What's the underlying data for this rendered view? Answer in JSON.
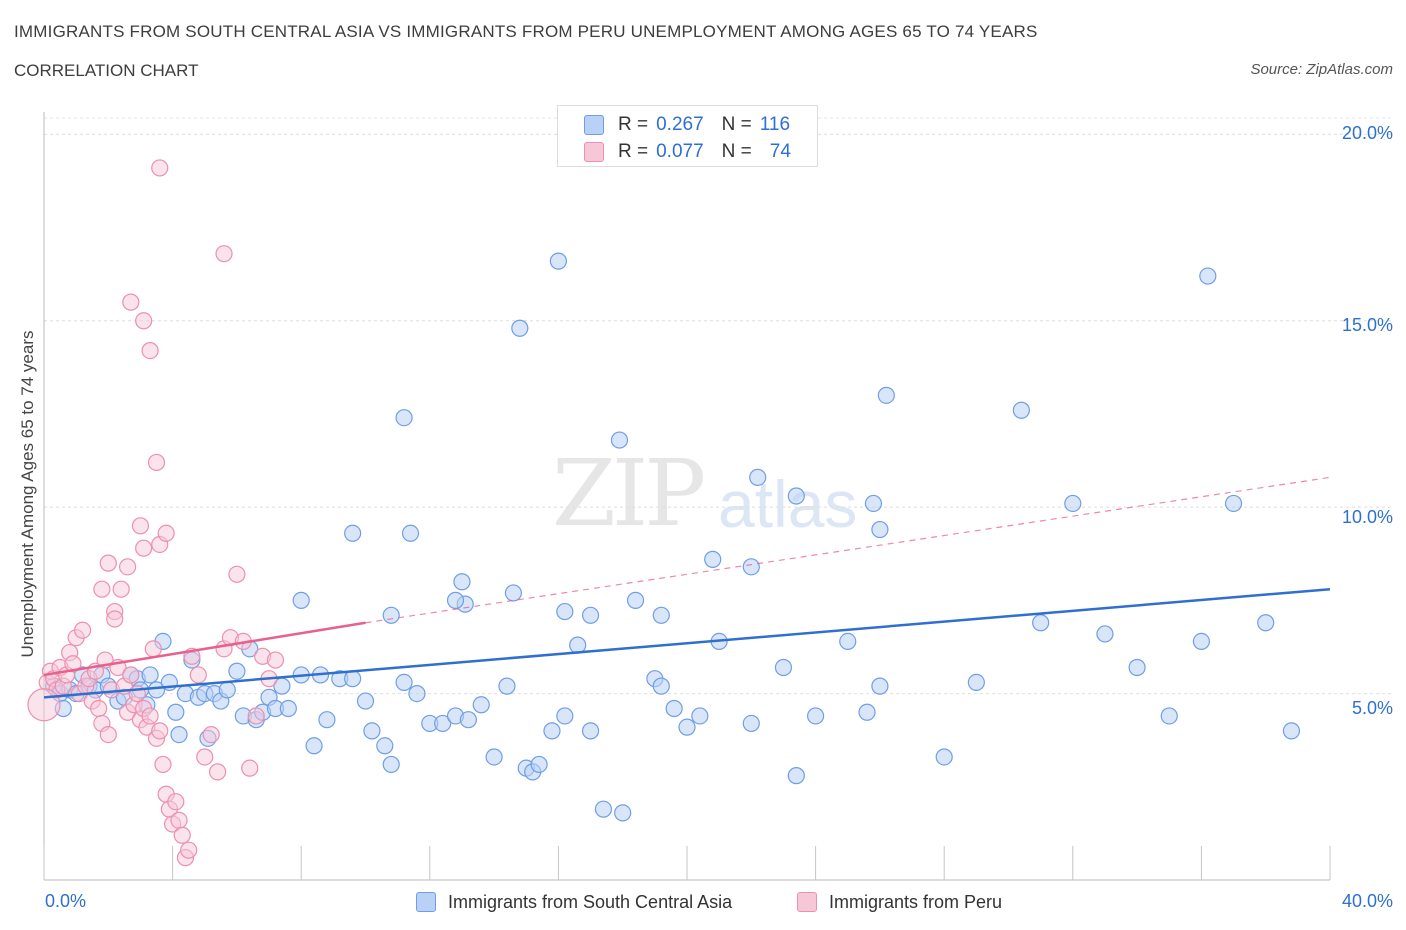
{
  "header": {
    "title": "IMMIGRANTS FROM SOUTH CENTRAL ASIA VS IMMIGRANTS FROM PERU UNEMPLOYMENT AMONG AGES 65 TO 74 YEARS",
    "subtitle": "CORRELATION CHART",
    "source": "Source: ZipAtlas.com"
  },
  "watermark": {
    "zip": "ZIP",
    "atlas": "atlas"
  },
  "legend": {
    "rows": [
      {
        "r_label": "R =",
        "r_value": "0.267",
        "n_label": "N =",
        "n_value": "116"
      },
      {
        "r_label": "R =",
        "r_value": "0.077",
        "n_label": "N =",
        "n_value": "74"
      }
    ]
  },
  "colors": {
    "blue": "#6f9ee6",
    "blue_fill": "#b9d1f6",
    "blue_line": "#2f6fd0",
    "pink": "#ec8fb0",
    "pink_fill": "#f7c7d8",
    "pink_line": "#e8608c",
    "axis_text": "#2f6fd0"
  },
  "chart_data": {
    "type": "scatter",
    "title": "IMMIGRANTS FROM SOUTH CENTRAL ASIA VS IMMIGRANTS FROM PERU UNEMPLOYMENT AMONG AGES 65 TO 74 YEARS",
    "xlabel": "",
    "ylabel": "Unemployment Among Ages 65 to 74 years",
    "xlim": [
      0,
      40
    ],
    "ylim": [
      0,
      20.6
    ],
    "x_tick_labels": [
      "0.0%",
      "40.0%"
    ],
    "y_ticks": [
      5,
      10,
      15,
      20
    ],
    "y_tick_labels": [
      "5.0%",
      "10.0%",
      "15.0%",
      "20.0%"
    ],
    "grid": true,
    "series": [
      {
        "name": "Immigrants from South Central Asia",
        "color": "#6f9ee6",
        "trend": {
          "x": [
            0,
            40
          ],
          "y": [
            4.9,
            7.8
          ],
          "dashed_to": null
        },
        "points": [
          [
            0.3,
            5.2
          ],
          [
            0.5,
            5.0
          ],
          [
            0.6,
            4.6
          ],
          [
            0.8,
            5.1
          ],
          [
            1.0,
            5.0
          ],
          [
            1.2,
            5.5
          ],
          [
            1.4,
            5.2
          ],
          [
            1.6,
            5.1
          ],
          [
            1.8,
            5.5
          ],
          [
            2.0,
            5.2
          ],
          [
            2.3,
            4.8
          ],
          [
            2.5,
            4.9
          ],
          [
            2.7,
            5.5
          ],
          [
            2.9,
            5.4
          ],
          [
            3.0,
            5.1
          ],
          [
            3.2,
            4.7
          ],
          [
            3.3,
            5.5
          ],
          [
            3.5,
            5.1
          ],
          [
            3.7,
            6.4
          ],
          [
            3.9,
            5.3
          ],
          [
            4.1,
            4.5
          ],
          [
            4.2,
            3.9
          ],
          [
            4.4,
            5.0
          ],
          [
            4.6,
            5.9
          ],
          [
            4.8,
            4.9
          ],
          [
            5.0,
            5.0
          ],
          [
            5.1,
            3.8
          ],
          [
            5.3,
            5.0
          ],
          [
            5.5,
            4.8
          ],
          [
            5.7,
            5.1
          ],
          [
            6.0,
            5.6
          ],
          [
            6.2,
            4.4
          ],
          [
            6.4,
            6.2
          ],
          [
            6.6,
            4.3
          ],
          [
            6.8,
            4.5
          ],
          [
            7.0,
            4.9
          ],
          [
            7.2,
            4.6
          ],
          [
            7.4,
            5.2
          ],
          [
            7.6,
            4.6
          ],
          [
            8.0,
            5.5
          ],
          [
            8.4,
            3.6
          ],
          [
            8.6,
            5.5
          ],
          [
            8.8,
            4.3
          ],
          [
            9.2,
            5.4
          ],
          [
            9.6,
            5.4
          ],
          [
            10.0,
            4.8
          ],
          [
            10.2,
            4.0
          ],
          [
            10.6,
            3.6
          ],
          [
            10.8,
            3.1
          ],
          [
            11.2,
            5.3
          ],
          [
            11.6,
            5.0
          ],
          [
            12.0,
            4.2
          ],
          [
            12.4,
            4.2
          ],
          [
            12.8,
            4.4
          ],
          [
            13.2,
            4.3
          ],
          [
            13.6,
            4.7
          ],
          [
            14.0,
            3.3
          ],
          [
            14.4,
            5.2
          ],
          [
            15.0,
            3.0
          ],
          [
            15.2,
            2.9
          ],
          [
            15.4,
            3.1
          ],
          [
            15.8,
            4.0
          ],
          [
            16.2,
            4.4
          ],
          [
            16.6,
            6.3
          ],
          [
            17.0,
            4.0
          ],
          [
            17.4,
            1.9
          ],
          [
            18.0,
            1.8
          ],
          [
            18.4,
            7.5
          ],
          [
            19.0,
            5.4
          ],
          [
            19.2,
            5.2
          ],
          [
            19.6,
            4.6
          ],
          [
            20.0,
            4.1
          ],
          [
            20.4,
            4.4
          ],
          [
            21.0,
            6.4
          ],
          [
            22.0,
            4.2
          ],
          [
            23.0,
            5.7
          ],
          [
            23.4,
            2.8
          ],
          [
            24.0,
            4.4
          ],
          [
            25.0,
            6.4
          ],
          [
            25.6,
            4.5
          ],
          [
            25.8,
            10.1
          ],
          [
            26.0,
            5.2
          ],
          [
            26.2,
            13.0
          ],
          [
            28.0,
            3.3
          ],
          [
            29.0,
            5.3
          ],
          [
            30.4,
            12.6
          ],
          [
            31.0,
            6.9
          ],
          [
            32.0,
            10.1
          ],
          [
            33.0,
            6.6
          ],
          [
            34.0,
            5.7
          ],
          [
            35.0,
            4.4
          ],
          [
            36.0,
            6.4
          ],
          [
            36.2,
            16.2
          ],
          [
            37.0,
            10.1
          ],
          [
            38.0,
            6.9
          ],
          [
            38.8,
            4.0
          ],
          [
            9.6,
            9.3
          ],
          [
            11.4,
            9.3
          ],
          [
            11.2,
            12.4
          ],
          [
            14.8,
            14.8
          ],
          [
            16.0,
            16.6
          ],
          [
            17.9,
            11.8
          ],
          [
            20.8,
            8.6
          ],
          [
            22.2,
            10.8
          ],
          [
            23.4,
            10.3
          ],
          [
            22.0,
            8.4
          ],
          [
            13.1,
            7.4
          ],
          [
            12.8,
            7.5
          ],
          [
            8.0,
            7.5
          ],
          [
            10.8,
            7.1
          ],
          [
            13.0,
            8.0
          ],
          [
            14.6,
            7.7
          ],
          [
            16.2,
            7.2
          ],
          [
            17.0,
            7.1
          ],
          [
            19.2,
            7.1
          ],
          [
            26.0,
            9.4
          ]
        ]
      },
      {
        "name": "Immigrants from Peru",
        "color": "#ec8fb0",
        "trend": {
          "x": [
            0,
            10
          ],
          "y": [
            5.5,
            6.9
          ],
          "dashed_to": [
            40,
            10.8
          ]
        },
        "points": [
          [
            0.1,
            5.3
          ],
          [
            0.2,
            5.6
          ],
          [
            0.3,
            5.4
          ],
          [
            0.4,
            5.1
          ],
          [
            0.5,
            5.7
          ],
          [
            0.6,
            5.2
          ],
          [
            0.7,
            5.5
          ],
          [
            0.8,
            6.1
          ],
          [
            0.9,
            5.8
          ],
          [
            1.0,
            6.5
          ],
          [
            1.1,
            5.0
          ],
          [
            1.2,
            6.7
          ],
          [
            1.3,
            5.2
          ],
          [
            1.4,
            5.4
          ],
          [
            1.5,
            4.8
          ],
          [
            1.6,
            5.6
          ],
          [
            1.7,
            4.6
          ],
          [
            1.8,
            4.2
          ],
          [
            1.9,
            5.9
          ],
          [
            2.0,
            3.9
          ],
          [
            2.1,
            5.1
          ],
          [
            2.2,
            7.2
          ],
          [
            2.3,
            5.7
          ],
          [
            2.4,
            7.8
          ],
          [
            2.5,
            5.2
          ],
          [
            2.6,
            4.5
          ],
          [
            2.7,
            5.5
          ],
          [
            2.8,
            4.7
          ],
          [
            2.9,
            5.0
          ],
          [
            3.0,
            4.3
          ],
          [
            3.1,
            4.6
          ],
          [
            3.2,
            4.1
          ],
          [
            3.3,
            4.4
          ],
          [
            3.4,
            6.2
          ],
          [
            3.5,
            3.8
          ],
          [
            3.6,
            4.0
          ],
          [
            3.7,
            3.1
          ],
          [
            3.8,
            2.3
          ],
          [
            3.9,
            1.9
          ],
          [
            4.0,
            1.5
          ],
          [
            4.1,
            2.1
          ],
          [
            4.2,
            1.6
          ],
          [
            4.3,
            1.2
          ],
          [
            4.4,
            0.6
          ],
          [
            4.5,
            0.8
          ],
          [
            4.6,
            6.0
          ],
          [
            4.8,
            5.5
          ],
          [
            5.0,
            3.3
          ],
          [
            5.2,
            3.9
          ],
          [
            5.4,
            2.9
          ],
          [
            5.6,
            6.2
          ],
          [
            5.8,
            6.5
          ],
          [
            6.0,
            8.2
          ],
          [
            6.2,
            6.4
          ],
          [
            6.4,
            3.0
          ],
          [
            6.6,
            4.4
          ],
          [
            6.8,
            6.0
          ],
          [
            7.0,
            5.4
          ],
          [
            7.2,
            5.9
          ],
          [
            2.0,
            8.5
          ],
          [
            2.6,
            8.4
          ],
          [
            3.0,
            9.5
          ],
          [
            3.1,
            8.9
          ],
          [
            3.6,
            9.0
          ],
          [
            3.8,
            9.3
          ],
          [
            3.5,
            11.2
          ],
          [
            3.3,
            14.2
          ],
          [
            3.1,
            15.0
          ],
          [
            2.7,
            15.5
          ],
          [
            5.6,
            16.8
          ],
          [
            3.6,
            19.1
          ],
          [
            2.2,
            7.0
          ],
          [
            1.8,
            7.8
          ],
          [
            0.0,
            4.7
          ]
        ]
      }
    ]
  },
  "bottom_legend": {
    "items": [
      {
        "label": "Immigrants from South Central Asia"
      },
      {
        "label": "Immigrants from Peru"
      }
    ]
  },
  "axis": {
    "x_left": "0.0%",
    "x_right": "40.0%",
    "y_labels": [
      "20.0%",
      "15.0%",
      "10.0%",
      "5.0%"
    ]
  }
}
